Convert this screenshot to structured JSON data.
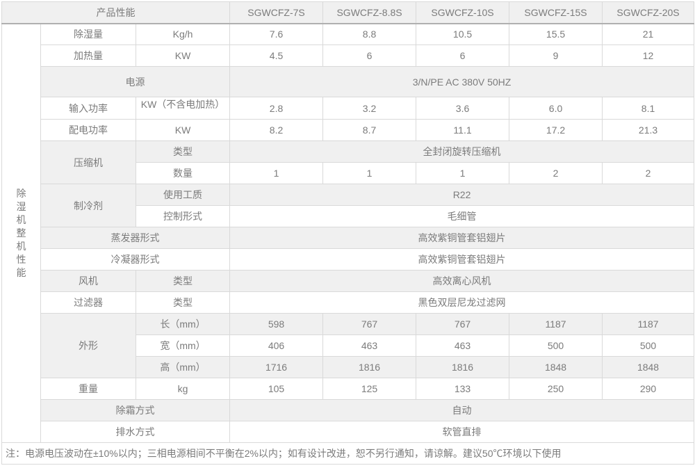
{
  "table": {
    "header": {
      "corner_label": "产品性能",
      "models": [
        "SGWCFZ-7S",
        "SGWCFZ-8.8S",
        "SGWCFZ-10S",
        "SGWCFZ-15S",
        "SGWCFZ-20S"
      ]
    },
    "side_label": "除湿机整机性能",
    "rows": [
      {
        "shaded": false,
        "cells": [
          {
            "text": "除湿量",
            "kind": "label"
          },
          {
            "text": "Kg/h",
            "kind": "unit"
          },
          {
            "text": "7.6",
            "kind": "value"
          },
          {
            "text": "8.8",
            "kind": "value"
          },
          {
            "text": "10.5",
            "kind": "value"
          },
          {
            "text": "15.5",
            "kind": "value"
          },
          {
            "text": "21",
            "kind": "value"
          }
        ]
      },
      {
        "shaded": false,
        "cells": [
          {
            "text": "加热量",
            "kind": "label"
          },
          {
            "text": "KW",
            "kind": "unit"
          },
          {
            "text": "4.5",
            "kind": "value"
          },
          {
            "text": "6",
            "kind": "value"
          },
          {
            "text": "6",
            "kind": "value"
          },
          {
            "text": "9",
            "kind": "value"
          },
          {
            "text": "12",
            "kind": "value"
          }
        ]
      },
      {
        "shaded": true,
        "tall": true,
        "cells": [
          {
            "text": "电源",
            "kind": "label",
            "colspan": 2
          },
          {
            "text": "3/N/PE AC 380V 50HZ",
            "kind": "value",
            "colspan": 5
          }
        ]
      },
      {
        "shaded": false,
        "cells": [
          {
            "text": "输入功率",
            "kind": "label"
          },
          {
            "text": "KW（不含电加热）",
            "kind": "unit",
            "clip": true
          },
          {
            "text": "2.8",
            "kind": "value"
          },
          {
            "text": "3.2",
            "kind": "value"
          },
          {
            "text": "3.6",
            "kind": "value"
          },
          {
            "text": "6.0",
            "kind": "value"
          },
          {
            "text": "8.1",
            "kind": "value"
          }
        ]
      },
      {
        "shaded": false,
        "cells": [
          {
            "text": "配电功率",
            "kind": "label"
          },
          {
            "text": "KW",
            "kind": "unit"
          },
          {
            "text": "8.2",
            "kind": "value"
          },
          {
            "text": "8.7",
            "kind": "value"
          },
          {
            "text": "11.1",
            "kind": "value"
          },
          {
            "text": "17.2",
            "kind": "value"
          },
          {
            "text": "21.3",
            "kind": "value"
          }
        ]
      },
      {
        "shaded": true,
        "cells": [
          {
            "text": "压缩机",
            "kind": "label",
            "rowspan": 2
          },
          {
            "text": "类型",
            "kind": "unit"
          },
          {
            "text": "全封闭旋转压缩机",
            "kind": "value",
            "colspan": 5
          }
        ]
      },
      {
        "shaded": false,
        "cells": [
          {
            "text": "数量",
            "kind": "unit"
          },
          {
            "text": "1",
            "kind": "value"
          },
          {
            "text": "1",
            "kind": "value"
          },
          {
            "text": "1",
            "kind": "value"
          },
          {
            "text": "2",
            "kind": "value"
          },
          {
            "text": "2",
            "kind": "value"
          }
        ]
      },
      {
        "shaded": true,
        "cells": [
          {
            "text": "制冷剂",
            "kind": "label",
            "rowspan": 2
          },
          {
            "text": "使用工质",
            "kind": "unit"
          },
          {
            "text": "R22",
            "kind": "value",
            "colspan": 5
          }
        ]
      },
      {
        "shaded": false,
        "cells": [
          {
            "text": "控制形式",
            "kind": "unit"
          },
          {
            "text": "毛细管",
            "kind": "value",
            "colspan": 5
          }
        ]
      },
      {
        "shaded": true,
        "cells": [
          {
            "text": "蒸发器形式",
            "kind": "label",
            "colspan": 2
          },
          {
            "text": "高效紫铜管套铝翅片",
            "kind": "value",
            "colspan": 5
          }
        ]
      },
      {
        "shaded": false,
        "cells": [
          {
            "text": "冷凝器形式",
            "kind": "label",
            "colspan": 2
          },
          {
            "text": "高效紫铜管套铝翅片",
            "kind": "value",
            "colspan": 5
          }
        ]
      },
      {
        "shaded": true,
        "cells": [
          {
            "text": "风机",
            "kind": "label"
          },
          {
            "text": "类型",
            "kind": "unit"
          },
          {
            "text": "高效离心风机",
            "kind": "value",
            "colspan": 5
          }
        ]
      },
      {
        "shaded": false,
        "cells": [
          {
            "text": "过滤器",
            "kind": "label"
          },
          {
            "text": "类型",
            "kind": "unit"
          },
          {
            "text": "黑色双层尼龙过滤网",
            "kind": "value",
            "colspan": 5
          }
        ]
      },
      {
        "shaded": true,
        "cells": [
          {
            "text": "外形",
            "kind": "label",
            "rowspan": 3
          },
          {
            "text": "长（mm）",
            "kind": "unit"
          },
          {
            "text": "598",
            "kind": "value"
          },
          {
            "text": "767",
            "kind": "value"
          },
          {
            "text": "767",
            "kind": "value"
          },
          {
            "text": "1187",
            "kind": "value"
          },
          {
            "text": "1187",
            "kind": "value"
          }
        ]
      },
      {
        "shaded": false,
        "cells": [
          {
            "text": "宽（mm）",
            "kind": "unit"
          },
          {
            "text": "406",
            "kind": "value"
          },
          {
            "text": "463",
            "kind": "value"
          },
          {
            "text": "463",
            "kind": "value"
          },
          {
            "text": "500",
            "kind": "value"
          },
          {
            "text": "500",
            "kind": "value"
          }
        ]
      },
      {
        "shaded": true,
        "cells": [
          {
            "text": "高（mm）",
            "kind": "unit"
          },
          {
            "text": "1716",
            "kind": "value"
          },
          {
            "text": "1816",
            "kind": "value"
          },
          {
            "text": "1816",
            "kind": "value"
          },
          {
            "text": "1848",
            "kind": "value"
          },
          {
            "text": "1848",
            "kind": "value"
          }
        ]
      },
      {
        "shaded": false,
        "cells": [
          {
            "text": "重量",
            "kind": "label"
          },
          {
            "text": "kg",
            "kind": "unit"
          },
          {
            "text": "105",
            "kind": "value"
          },
          {
            "text": "125",
            "kind": "value"
          },
          {
            "text": "133",
            "kind": "value"
          },
          {
            "text": "250",
            "kind": "value"
          },
          {
            "text": "290",
            "kind": "value"
          }
        ]
      },
      {
        "shaded": true,
        "cells": [
          {
            "text": "除霜方式",
            "kind": "label",
            "colspan": 2
          },
          {
            "text": "自动",
            "kind": "value",
            "colspan": 5
          }
        ]
      },
      {
        "shaded": false,
        "cells": [
          {
            "text": "排水方式",
            "kind": "label",
            "colspan": 2
          },
          {
            "text": "软管直排",
            "kind": "value",
            "colspan": 5
          }
        ]
      }
    ],
    "note": "注：电源电压波动在±10%以内；三相电源相间不平衡在2%以内；如有设计改进，恕不另行通知，请谅解。建议50℃环境以下使用"
  },
  "colors": {
    "shaded_row": "#f0f0f0",
    "border_light": "#d9d9d9",
    "border_dark": "#b0b0b0",
    "text": "#7b7b7b"
  }
}
